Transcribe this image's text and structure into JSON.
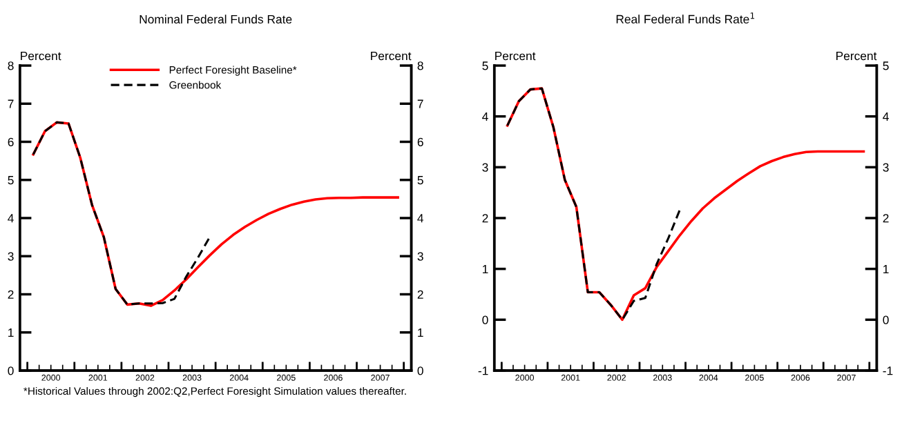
{
  "chart_data": [
    {
      "type": "line",
      "title": "Nominal Federal Funds Rate",
      "ylabel": "Percent",
      "y2label": "Percent",
      "x": [
        2000.125,
        2000.375,
        2000.625,
        2000.875,
        2001.125,
        2001.375,
        2001.625,
        2001.875,
        2002.125,
        2002.375,
        2002.625,
        2002.875,
        2003.125,
        2003.375,
        2003.625,
        2003.875,
        2004.125,
        2004.375,
        2004.625,
        2004.875,
        2005.125,
        2005.375,
        2005.625,
        2005.875,
        2006.125,
        2006.375,
        2006.625,
        2006.875,
        2007.125,
        2007.375,
        2007.625,
        2007.875
      ],
      "series": [
        {
          "name": "Perfect Foresight Baseline*",
          "color": "#ff0000",
          "line_style": "solid",
          "values": [
            5.67,
            6.28,
            6.51,
            6.48,
            5.58,
            4.34,
            3.5,
            2.14,
            1.73,
            1.76,
            1.7,
            1.85,
            2.1,
            2.39,
            2.71,
            3.02,
            3.31,
            3.56,
            3.77,
            3.95,
            4.11,
            4.24,
            4.35,
            4.43,
            4.49,
            4.52,
            4.53,
            4.53,
            4.54,
            4.54,
            4.54,
            4.54
          ]
        },
        {
          "name": "Greenbook",
          "color": "#000000",
          "line_style": "dashed",
          "values": [
            5.67,
            6.28,
            6.51,
            6.48,
            5.58,
            4.34,
            3.5,
            2.14,
            1.73,
            1.76,
            1.76,
            1.77,
            1.88,
            2.46,
            2.96,
            3.5,
            null,
            null,
            null,
            null,
            null,
            null,
            null,
            null,
            null,
            null,
            null,
            null,
            null,
            null,
            null,
            null
          ]
        }
      ],
      "xlim": [
        1999.84,
        2008.16
      ],
      "xticks": [
        {
          "value": 2000,
          "label": null
        },
        {
          "value": 2000.25,
          "label": null
        },
        {
          "value": 2000.5,
          "label": "2000"
        },
        {
          "value": 2000.75,
          "label": null
        },
        {
          "value": 2001,
          "label": null
        },
        {
          "value": 2001.25,
          "label": null
        },
        {
          "value": 2001.5,
          "label": "2001"
        },
        {
          "value": 2001.75,
          "label": null
        },
        {
          "value": 2002,
          "label": null
        },
        {
          "value": 2002.25,
          "label": null
        },
        {
          "value": 2002.5,
          "label": "2002"
        },
        {
          "value": 2002.75,
          "label": null
        },
        {
          "value": 2003,
          "label": null
        },
        {
          "value": 2003.25,
          "label": null
        },
        {
          "value": 2003.5,
          "label": "2003"
        },
        {
          "value": 2003.75,
          "label": null
        },
        {
          "value": 2004,
          "label": null
        },
        {
          "value": 2004.25,
          "label": null
        },
        {
          "value": 2004.5,
          "label": "2004"
        },
        {
          "value": 2004.75,
          "label": null
        },
        {
          "value": 2005,
          "label": null
        },
        {
          "value": 2005.25,
          "label": null
        },
        {
          "value": 2005.5,
          "label": "2005"
        },
        {
          "value": 2005.75,
          "label": null
        },
        {
          "value": 2006,
          "label": null
        },
        {
          "value": 2006.25,
          "label": null
        },
        {
          "value": 2006.5,
          "label": "2006"
        },
        {
          "value": 2006.75,
          "label": null
        },
        {
          "value": 2007,
          "label": null
        },
        {
          "value": 2007.25,
          "label": null
        },
        {
          "value": 2007.5,
          "label": "2007"
        },
        {
          "value": 2007.75,
          "label": null
        },
        {
          "value": 2008,
          "label": null
        }
      ],
      "ylim": [
        0,
        8
      ],
      "yticks": [
        0,
        1,
        2,
        3,
        4,
        5,
        6,
        7,
        8
      ],
      "y2lim": [
        0,
        8
      ],
      "y2ticks": [
        0,
        1,
        2,
        3,
        4,
        5,
        6,
        7,
        8
      ],
      "legend": "top",
      "annotations": [
        "*Historical Values through 2002:Q2,Perfect Foresight Simulation values thereafter."
      ]
    },
    {
      "type": "line",
      "title": "Real Federal Funds Rate$^{1}$",
      "ylabel": "Percent",
      "y2label": "Percent",
      "x": [
        2000.125,
        2000.375,
        2000.625,
        2000.875,
        2001.125,
        2001.375,
        2001.625,
        2001.875,
        2002.125,
        2002.375,
        2002.625,
        2002.875,
        2003.125,
        2003.375,
        2003.625,
        2003.875,
        2004.125,
        2004.375,
        2004.625,
        2004.875,
        2005.125,
        2005.375,
        2005.625,
        2005.875,
        2006.125,
        2006.375,
        2006.625,
        2006.875,
        2007.125,
        2007.375,
        2007.625,
        2007.875
      ],
      "series": [
        {
          "color": "#ff0000",
          "line_style": "solid",
          "values": [
            3.82,
            4.3,
            4.53,
            4.55,
            3.79,
            2.75,
            2.22,
            0.54,
            0.54,
            0.29,
            0.0,
            0.48,
            0.62,
            1.04,
            1.35,
            1.66,
            1.94,
            2.19,
            2.39,
            2.56,
            2.73,
            2.88,
            3.02,
            3.12,
            3.2,
            3.26,
            3.3,
            3.31,
            3.31,
            3.31,
            3.31,
            3.31
          ]
        },
        {
          "color": "#000000",
          "line_style": "dashed",
          "values": [
            3.82,
            4.3,
            4.53,
            4.55,
            3.79,
            2.75,
            2.22,
            0.54,
            0.54,
            0.29,
            0.0,
            0.37,
            0.43,
            1.1,
            1.6,
            2.16,
            null,
            null,
            null,
            null,
            null,
            null,
            null,
            null,
            null,
            null,
            null,
            null,
            null,
            null,
            null,
            null
          ]
        }
      ],
      "xlim": [
        1999.84,
        2008.16
      ],
      "xticks": [
        {
          "value": 2000,
          "label": null
        },
        {
          "value": 2000.25,
          "label": null
        },
        {
          "value": 2000.5,
          "label": "2000"
        },
        {
          "value": 2000.75,
          "label": null
        },
        {
          "value": 2001,
          "label": null
        },
        {
          "value": 2001.25,
          "label": null
        },
        {
          "value": 2001.5,
          "label": "2001"
        },
        {
          "value": 2001.75,
          "label": null
        },
        {
          "value": 2002,
          "label": null
        },
        {
          "value": 2002.25,
          "label": null
        },
        {
          "value": 2002.5,
          "label": "2002"
        },
        {
          "value": 2002.75,
          "label": null
        },
        {
          "value": 2003,
          "label": null
        },
        {
          "value": 2003.25,
          "label": null
        },
        {
          "value": 2003.5,
          "label": "2003"
        },
        {
          "value": 2003.75,
          "label": null
        },
        {
          "value": 2004,
          "label": null
        },
        {
          "value": 2004.25,
          "label": null
        },
        {
          "value": 2004.5,
          "label": "2004"
        },
        {
          "value": 2004.75,
          "label": null
        },
        {
          "value": 2005,
          "label": null
        },
        {
          "value": 2005.25,
          "label": null
        },
        {
          "value": 2005.5,
          "label": "2005"
        },
        {
          "value": 2005.75,
          "label": null
        },
        {
          "value": 2006,
          "label": null
        },
        {
          "value": 2006.25,
          "label": null
        },
        {
          "value": 2006.5,
          "label": "2006"
        },
        {
          "value": 2006.75,
          "label": null
        },
        {
          "value": 2007,
          "label": null
        },
        {
          "value": 2007.25,
          "label": null
        },
        {
          "value": 2007.5,
          "label": "2007"
        },
        {
          "value": 2007.75,
          "label": null
        },
        {
          "value": 2008,
          "label": null
        }
      ],
      "ylim": [
        -1,
        5
      ],
      "yticks": [
        -1,
        0,
        1,
        2,
        3,
        4,
        5
      ],
      "y2lim": [
        -1,
        5
      ],
      "y2ticks": [
        -1,
        0,
        1,
        2,
        3,
        4,
        5
      ]
    }
  ]
}
